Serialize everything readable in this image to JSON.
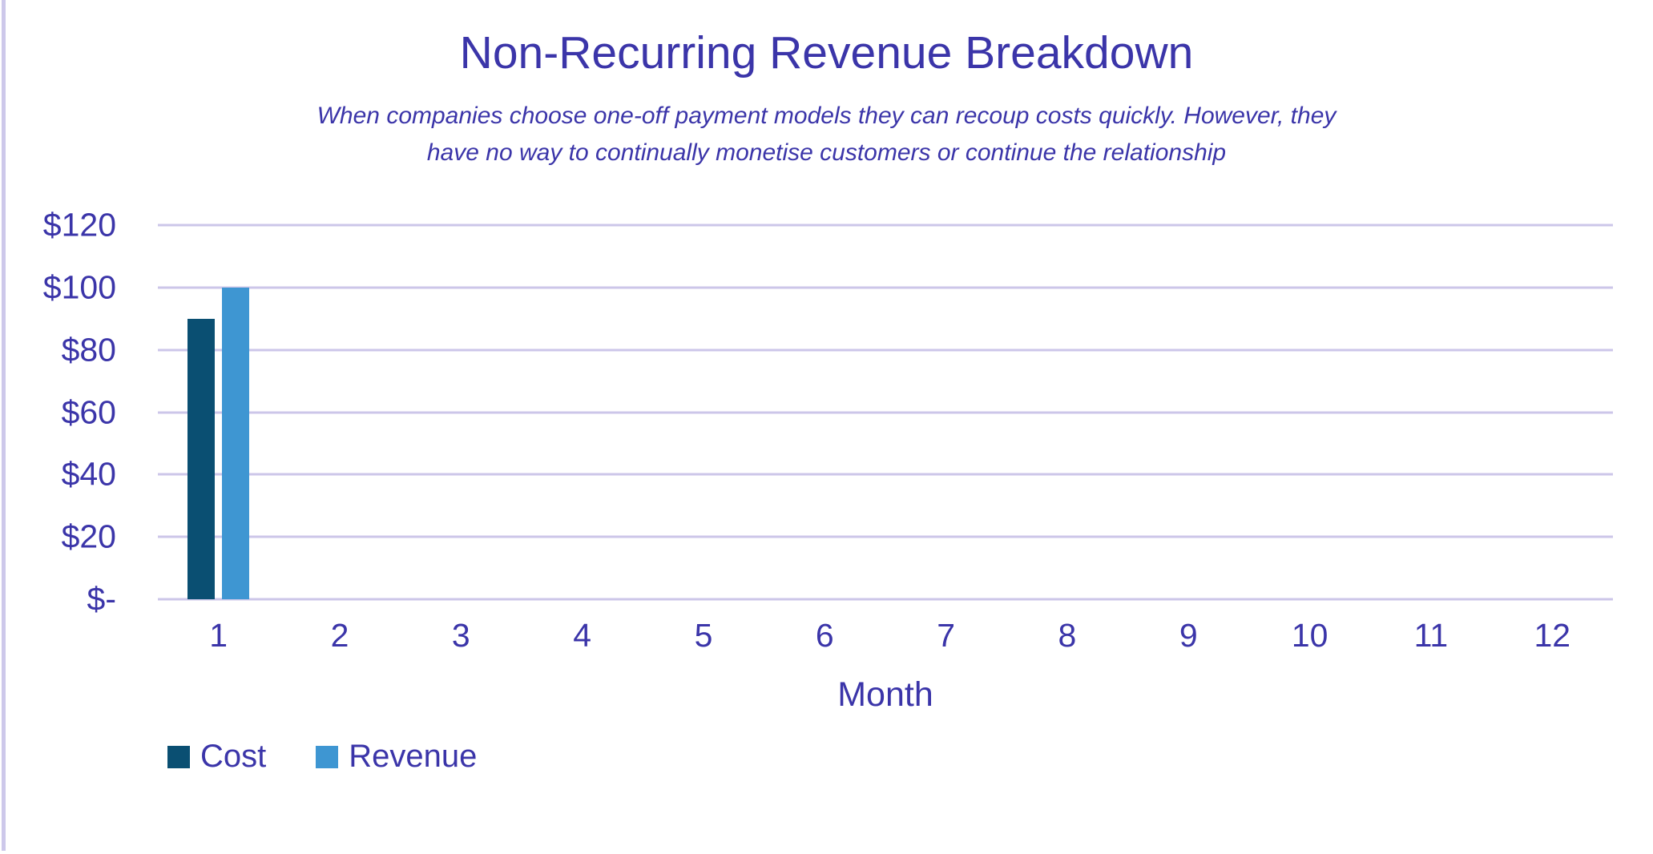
{
  "window": {
    "background": "#ffffff"
  },
  "colors": {
    "text": "#3b35a9",
    "gridline": "#ccc6e9",
    "left_border": "#cdc8ea"
  },
  "chart_data": {
    "type": "bar",
    "title": "Non-Recurring Revenue Breakdown",
    "subtitle_line1": "When companies choose one-off payment models they can recoup costs quickly. However, they",
    "subtitle_line2": "have no way to continually monetise customers or continue the relationship",
    "categories": [
      "1",
      "2",
      "3",
      "4",
      "5",
      "6",
      "7",
      "8",
      "9",
      "10",
      "11",
      "12"
    ],
    "series": [
      {
        "name": "Cost",
        "color": "#0a4f72",
        "values": [
          90,
          0,
          0,
          0,
          0,
          0,
          0,
          0,
          0,
          0,
          0,
          0
        ]
      },
      {
        "name": "Revenue",
        "color": "#3e96d2",
        "values": [
          100,
          0,
          0,
          0,
          0,
          0,
          0,
          0,
          0,
          0,
          0,
          0
        ]
      }
    ],
    "xlabel": "Month",
    "ylim": [
      0,
      120
    ],
    "ytick_step": 20,
    "yticks_top_to_bottom": [
      "$120",
      "$100",
      "$80",
      "$60",
      "$40",
      "$20",
      "$-"
    ],
    "grid": true,
    "legend_position": "bottom-left"
  }
}
